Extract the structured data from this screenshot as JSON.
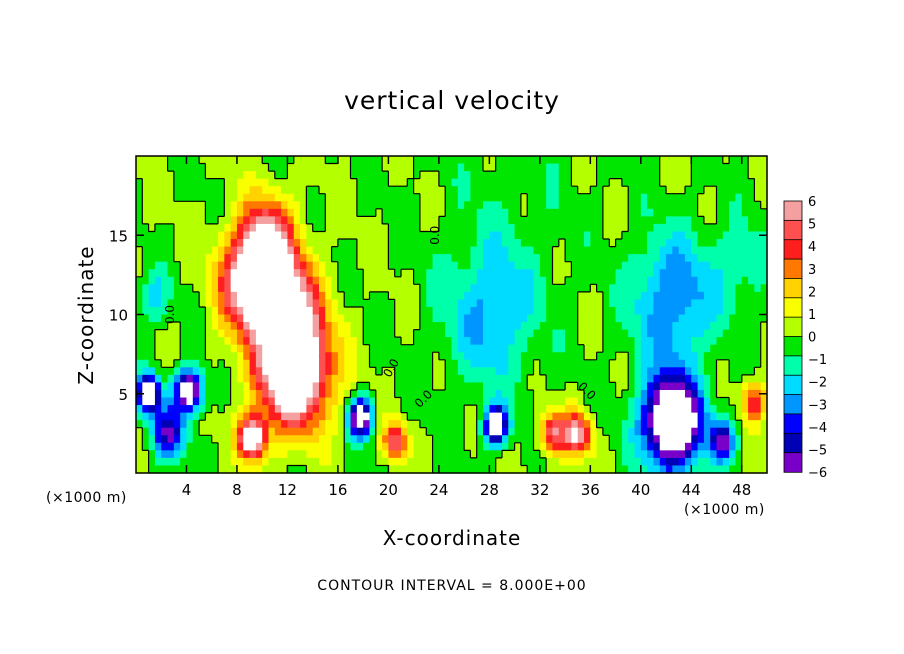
{
  "chart_data": {
    "type": "heatmap",
    "title": "vertical velocity",
    "xlabel": "X-coordinate",
    "ylabel": "Z-coordinate",
    "x_unit": "(×1000 m)",
    "y_unit": "(×1000 m)",
    "footer": "CONTOUR INTERVAL = 8.000E+00",
    "x_range": [
      0,
      50
    ],
    "y_range": [
      0,
      20
    ],
    "x_ticks": [
      4,
      8,
      12,
      16,
      20,
      24,
      28,
      32,
      36,
      40,
      44,
      48
    ],
    "y_ticks": [
      5,
      10,
      15
    ],
    "contour_label": "0.0",
    "colorbar": {
      "levels": [
        "6",
        "5",
        "4",
        "3",
        "2",
        "1",
        "0",
        "−1",
        "−2",
        "−3",
        "−4",
        "−5",
        "−6"
      ],
      "range": [
        -6,
        6
      ],
      "colors": [
        "#f4a0a0",
        "#ff5050",
        "#ff1e1e",
        "#ff7800",
        "#ffd200",
        "#faff00",
        "#b4ff00",
        "#00e600",
        "#00ffaa",
        "#00dcff",
        "#0096ff",
        "#0000ff",
        "#0000b4",
        "#7800c8"
      ]
    },
    "features": [
      {
        "x": 9.5,
        "z": 12.0,
        "w": 3.8,
        "peak": 9
      },
      {
        "x": 12.5,
        "z": 6.5,
        "w": 4.2,
        "peak": 10
      },
      {
        "x": 10.5,
        "z": 15.0,
        "w": 3.2,
        "peak": 4
      },
      {
        "x": 12.5,
        "z": 11.0,
        "w": 3.2,
        "peak": 4
      },
      {
        "x": 9.2,
        "z": 2.2,
        "w": 1.6,
        "peak": 8
      },
      {
        "x": 1.0,
        "z": 5.0,
        "w": 1.4,
        "peak": -8
      },
      {
        "x": 4.2,
        "z": 5.2,
        "w": 1.6,
        "peak": -8
      },
      {
        "x": 2.5,
        "z": 2.5,
        "w": 2.0,
        "peak": -5
      },
      {
        "x": 17.8,
        "z": 3.5,
        "w": 1.4,
        "peak": -8
      },
      {
        "x": 20.5,
        "z": 2.0,
        "w": 1.4,
        "peak": 5
      },
      {
        "x": 28.5,
        "z": 3.0,
        "w": 1.4,
        "peak": -8
      },
      {
        "x": 33.0,
        "z": 2.5,
        "w": 1.6,
        "peak": 5
      },
      {
        "x": 35.0,
        "z": 2.5,
        "w": 1.6,
        "peak": 6
      },
      {
        "x": 42.5,
        "z": 3.2,
        "w": 3.4,
        "peak": -10
      },
      {
        "x": 46.5,
        "z": 2.0,
        "w": 1.5,
        "peak": -5
      },
      {
        "x": 49.0,
        "z": 4.5,
        "w": 1.5,
        "peak": 4
      },
      {
        "x": 42.5,
        "z": 11.0,
        "w": 4.8,
        "peak": -3.5
      },
      {
        "x": 28.0,
        "z": 10.0,
        "w": 5.5,
        "peak": -2.5
      },
      {
        "x": 48.0,
        "z": 13.0,
        "w": 3.5,
        "peak": -1.5
      },
      {
        "x": 1.5,
        "z": 11.0,
        "w": 2.0,
        "peak": -2.0
      },
      {
        "x": 30.0,
        "z": 17.5,
        "w": 9.0,
        "peak": -0.5
      }
    ]
  }
}
